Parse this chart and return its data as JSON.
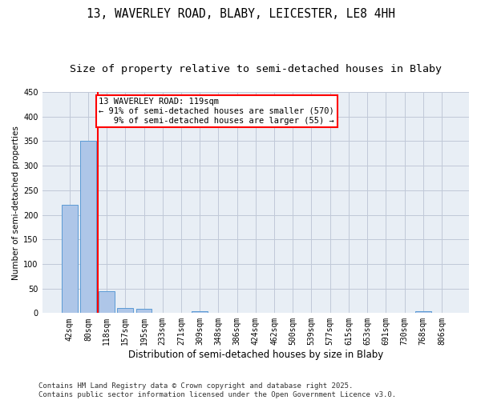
{
  "title1": "13, WAVERLEY ROAD, BLABY, LEICESTER, LE8 4HH",
  "title2": "Size of property relative to semi-detached houses in Blaby",
  "xlabel": "Distribution of semi-detached houses by size in Blaby",
  "ylabel": "Number of semi-detached properties",
  "categories": [
    "42sqm",
    "80sqm",
    "118sqm",
    "157sqm",
    "195sqm",
    "233sqm",
    "271sqm",
    "309sqm",
    "348sqm",
    "386sqm",
    "424sqm",
    "462sqm",
    "500sqm",
    "539sqm",
    "577sqm",
    "615sqm",
    "653sqm",
    "691sqm",
    "730sqm",
    "768sqm",
    "806sqm"
  ],
  "bar_values": [
    220,
    350,
    45,
    10,
    8,
    0,
    0,
    4,
    0,
    0,
    0,
    0,
    0,
    0,
    0,
    0,
    0,
    0,
    0,
    3,
    0
  ],
  "bar_color": "#aec6e8",
  "bar_edge_color": "#5b9bd5",
  "property_line_index": 2,
  "annotation_text": "13 WAVERLEY ROAD: 119sqm\n← 91% of semi-detached houses are smaller (570)\n   9% of semi-detached houses are larger (55) →",
  "ylim": [
    0,
    450
  ],
  "yticks": [
    0,
    50,
    100,
    150,
    200,
    250,
    300,
    350,
    400,
    450
  ],
  "grid_color": "#c0c8d8",
  "bg_color": "#e8eef5",
  "footnote": "Contains HM Land Registry data © Crown copyright and database right 2025.\nContains public sector information licensed under the Open Government Licence v3.0.",
  "title1_fontsize": 10.5,
  "title2_fontsize": 9.5,
  "xlabel_fontsize": 8.5,
  "ylabel_fontsize": 7.5,
  "annotation_fontsize": 7.5,
  "tick_fontsize": 7,
  "footnote_fontsize": 6.5
}
